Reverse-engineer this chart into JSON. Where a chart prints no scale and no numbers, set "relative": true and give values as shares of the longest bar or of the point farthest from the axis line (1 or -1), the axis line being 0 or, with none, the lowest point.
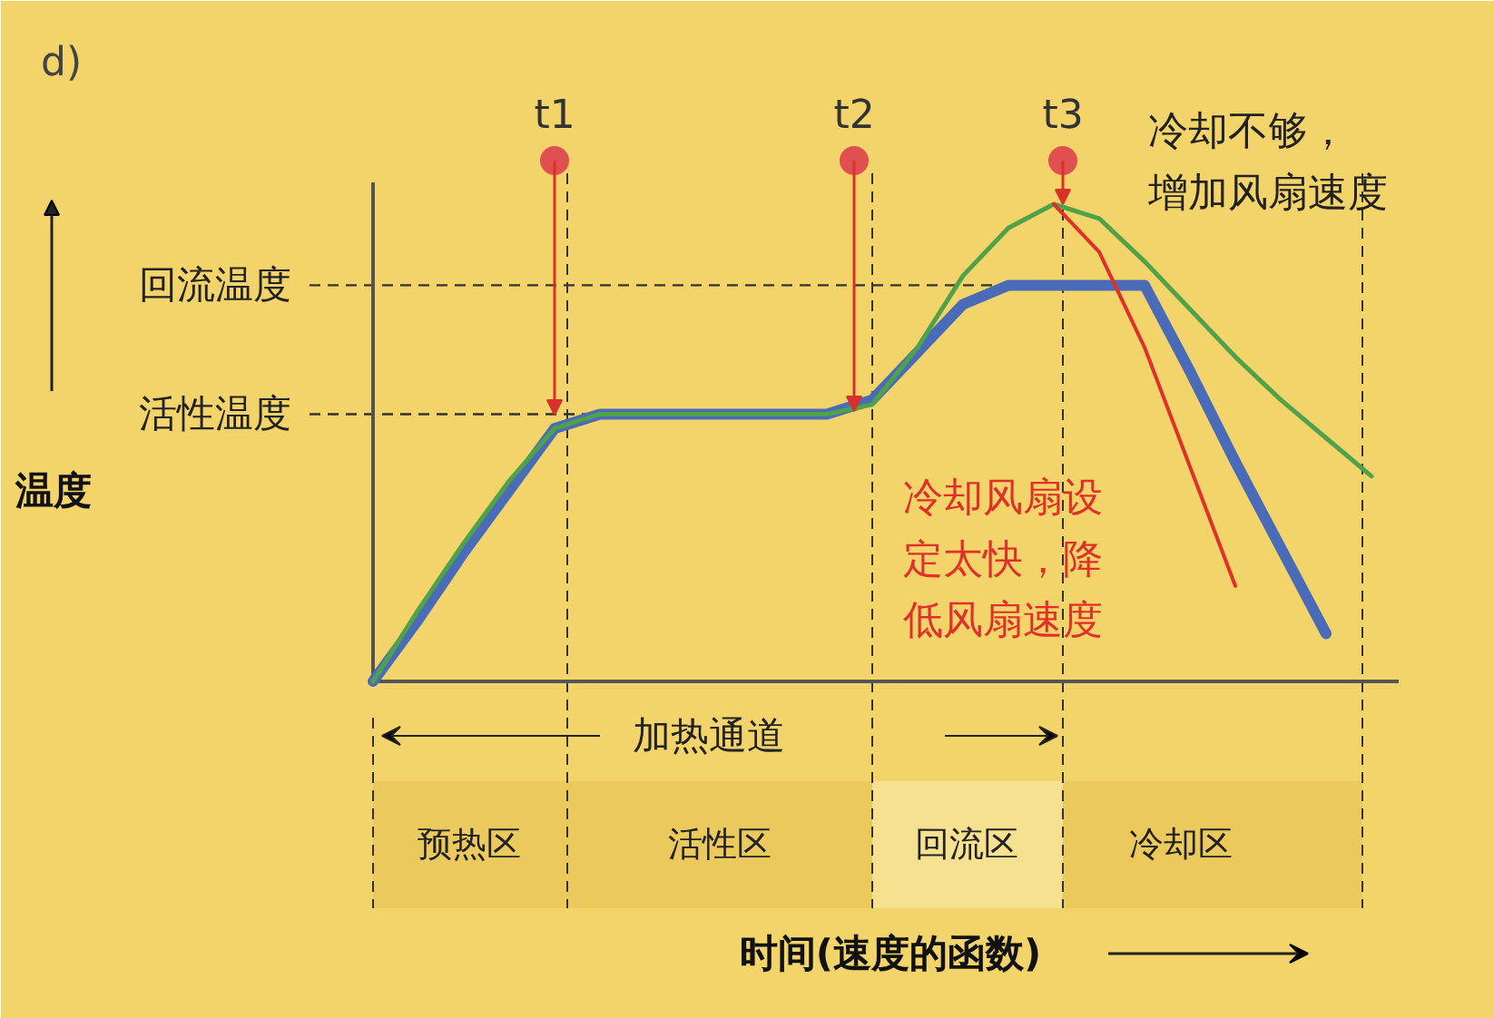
{
  "chart_data": {
    "type": "line",
    "relative": true,
    "title": "d)",
    "grid": false,
    "categories": [
      null,
      null,
      null,
      null,
      null,
      null,
      null,
      null,
      null,
      null,
      null,
      null,
      null,
      null,
      null,
      null,
      null,
      null,
      null,
      null,
      null,
      null,
      null
    ],
    "series": [
      {
        "color": "#4a6cb8",
        "values": [
          0,
          0.13,
          0.27,
          0.4,
          0.53,
          0.56,
          0.56,
          0.56,
          0.56,
          0.56,
          0.56,
          0.59,
          0.69,
          0.79,
          0.83,
          0.83,
          0.83,
          0.83,
          0.65,
          0.46,
          0.28,
          0.1,
          null
        ]
      },
      {
        "color": "#4fa24a",
        "values": [
          0,
          0.15,
          0.29,
          0.42,
          0.53,
          0.56,
          0.56,
          0.56,
          0.56,
          0.56,
          0.56,
          0.58,
          0.7,
          0.85,
          0.95,
          1.0,
          0.97,
          0.88,
          0.78,
          0.68,
          0.59,
          0.51,
          0.43
        ]
      },
      {
        "color": "#e0302a",
        "values": [
          null,
          null,
          null,
          null,
          null,
          null,
          null,
          null,
          null,
          null,
          null,
          null,
          null,
          null,
          null,
          1.0,
          0.9,
          0.7,
          0.45,
          0.2,
          null,
          null,
          null
        ]
      }
    ],
    "ref_lines": [
      {
        "axis": "y",
        "value": 0.83,
        "label": "回流温度",
        "line_style": "dashed",
        "color": "#333333"
      },
      {
        "axis": "y",
        "value": 0.56,
        "label": "活性温度",
        "line_style": "dashed",
        "color": "#333333"
      }
    ],
    "annotations": [
      "t1",
      "t2",
      "t3",
      "冷却不够，增加风扇速度",
      "冷却风扇设定太快，降低风扇速度",
      "加热通道",
      "预热区",
      "活性区",
      "回流区",
      "冷却区",
      "温度",
      "时间(速度的函数)"
    ]
  }
}
